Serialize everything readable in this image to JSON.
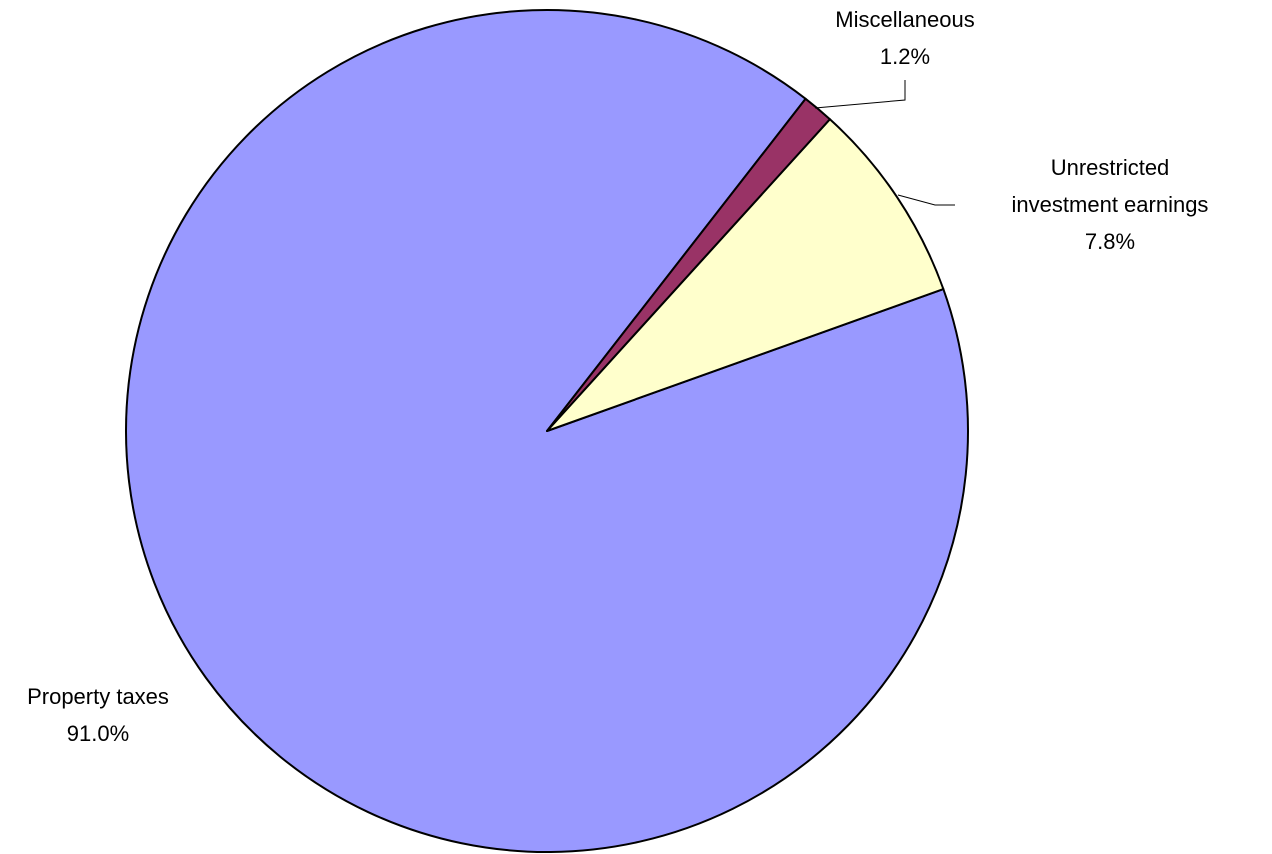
{
  "chart_data": {
    "type": "pie",
    "categories": [
      "Miscellaneous",
      "Unrestricted investment earnings",
      "Property taxes"
    ],
    "values": [
      1.2,
      7.8,
      91.0
    ],
    "value_labels": [
      "1.2%",
      "7.8%",
      "91.0%"
    ],
    "colors": [
      "#993366",
      "#ffffcc",
      "#9999ff"
    ]
  }
}
